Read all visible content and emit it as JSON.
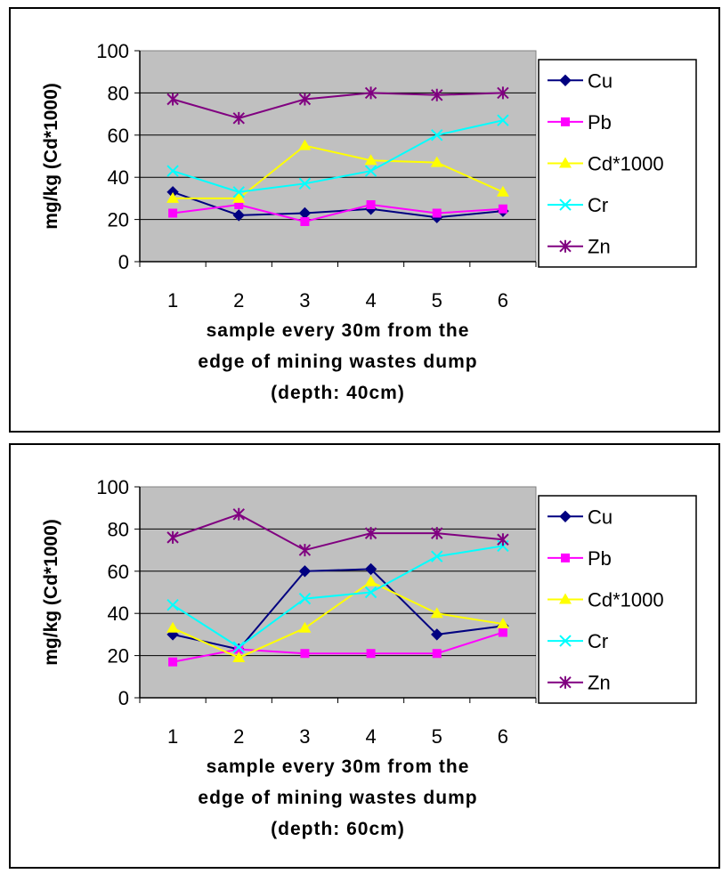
{
  "chart_data": [
    {
      "type": "line",
      "categories": [
        "1",
        "2",
        "3",
        "4",
        "5",
        "6"
      ],
      "ylabel": "mg/kg (Cd*1000)",
      "xlabel_lines": [
        "sample every 30m from the",
        "edge of mining wastes dump",
        "(depth: 40cm)"
      ],
      "ylim": [
        0,
        100
      ],
      "yticks": [
        "0",
        "20",
        "40",
        "60",
        "80",
        "100"
      ],
      "grid": true,
      "legend_position": "right",
      "series": [
        {
          "name": "Cu",
          "values": [
            33,
            22,
            23,
            25,
            21,
            24
          ],
          "color": "#000080",
          "marker": "diamond"
        },
        {
          "name": "Pb",
          "values": [
            23,
            27,
            19,
            27,
            23,
            25
          ],
          "color": "#ff00ff",
          "marker": "square"
        },
        {
          "name": "Cd*1000",
          "values": [
            30,
            30,
            55,
            48,
            47,
            33
          ],
          "color": "#ffff00",
          "marker": "triangle"
        },
        {
          "name": "Cr",
          "values": [
            43,
            33,
            37,
            43,
            60,
            67
          ],
          "color": "#00ffff",
          "marker": "x"
        },
        {
          "name": "Zn",
          "values": [
            77,
            68,
            77,
            80,
            79,
            80
          ],
          "color": "#800080",
          "marker": "star"
        }
      ]
    },
    {
      "type": "line",
      "categories": [
        "1",
        "2",
        "3",
        "4",
        "5",
        "6"
      ],
      "ylabel": "mg/kg (Cd*1000)",
      "xlabel_lines": [
        "sample every 30m from the",
        "edge of mining wastes dump",
        "(depth: 60cm)"
      ],
      "ylim": [
        0,
        100
      ],
      "yticks": [
        "0",
        "20",
        "40",
        "60",
        "80",
        "100"
      ],
      "grid": true,
      "legend_position": "right",
      "series": [
        {
          "name": "Cu",
          "values": [
            30,
            23,
            60,
            61,
            30,
            34
          ],
          "color": "#000080",
          "marker": "diamond"
        },
        {
          "name": "Pb",
          "values": [
            17,
            23,
            21,
            21,
            21,
            31
          ],
          "color": "#ff00ff",
          "marker": "square"
        },
        {
          "name": "Cd*1000",
          "values": [
            33,
            19,
            33,
            55,
            40,
            35
          ],
          "color": "#ffff00",
          "marker": "triangle"
        },
        {
          "name": "Cr",
          "values": [
            44,
            24,
            47,
            50,
            67,
            72
          ],
          "color": "#00ffff",
          "marker": "x"
        },
        {
          "name": "Zn",
          "values": [
            76,
            87,
            70,
            78,
            78,
            75
          ],
          "color": "#800080",
          "marker": "star"
        }
      ]
    }
  ]
}
